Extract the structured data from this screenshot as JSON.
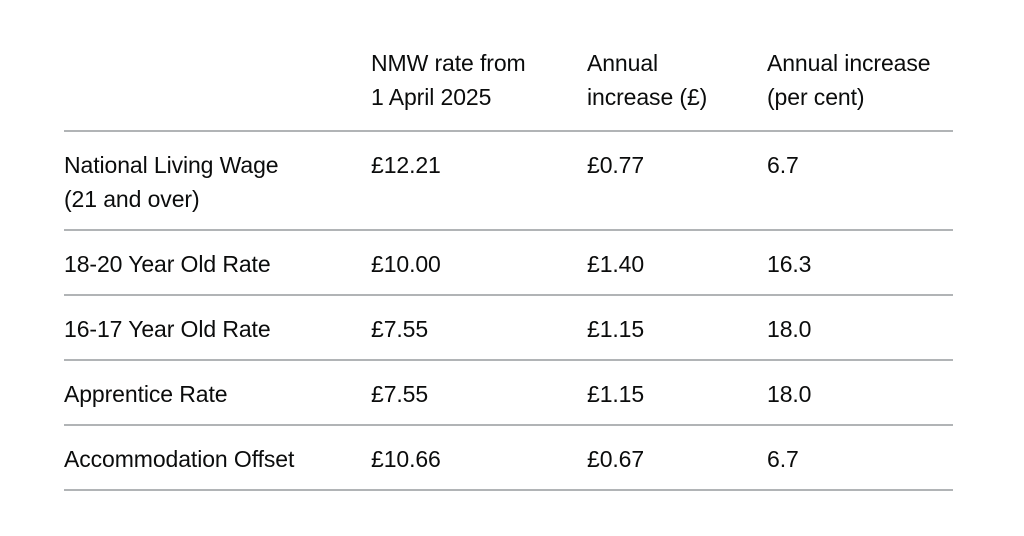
{
  "colors": {
    "text": "#0b0c0c",
    "divider": "#b1b4b6",
    "background": "#ffffff"
  },
  "chart_data": {
    "type": "table",
    "columns": [
      "",
      "NMW rate from 1 April 2025",
      "Annual increase (£)",
      "Annual increase (per cent)"
    ],
    "rows": [
      {
        "label": "National Living Wage (21 and over)",
        "nmw_rate": "£12.21",
        "annual_increase_gbp": "£0.77",
        "annual_increase_pct": "6.7"
      },
      {
        "label": "18-20 Year Old Rate",
        "nmw_rate": "£10.00",
        "annual_increase_gbp": "£1.40",
        "annual_increase_pct": "16.3"
      },
      {
        "label": "16-17 Year Old Rate",
        "nmw_rate": "£7.55",
        "annual_increase_gbp": "£1.15",
        "annual_increase_pct": "18.0"
      },
      {
        "label": "Apprentice Rate",
        "nmw_rate": "£7.55",
        "annual_increase_gbp": "£1.15",
        "annual_increase_pct": "18.0"
      },
      {
        "label": "Accommodation Offset",
        "nmw_rate": "£10.66",
        "annual_increase_gbp": "£0.67",
        "annual_increase_pct": "6.7"
      }
    ]
  }
}
